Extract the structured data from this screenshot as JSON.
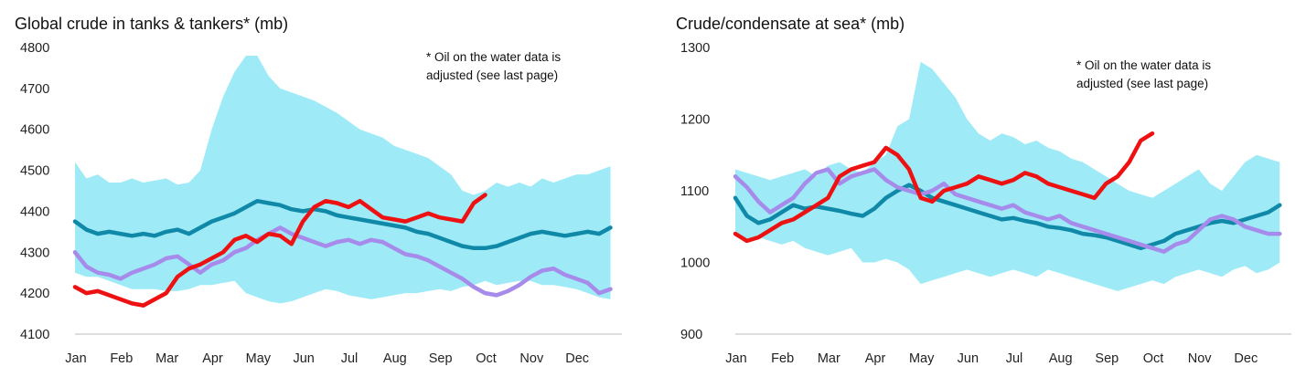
{
  "chart_data": [
    {
      "type": "line",
      "title": "Global crude in tanks & tankers* (mb)",
      "annotation": "* Oil on the water data is\nadjusted (see last page)",
      "xlabel": "",
      "ylabel": "",
      "ylim": [
        4100,
        4800
      ],
      "yticks": [
        4100,
        4200,
        4300,
        4400,
        4500,
        4600,
        4700,
        4800
      ],
      "categories": [
        "Jan",
        "Feb",
        "Mar",
        "Apr",
        "May",
        "Jun",
        "Jul",
        "Aug",
        "Sep",
        "Oct",
        "Nov",
        "Dec"
      ],
      "x": [
        0,
        0.25,
        0.5,
        0.75,
        1,
        1.25,
        1.5,
        1.75,
        2,
        2.25,
        2.5,
        2.75,
        3,
        3.25,
        3.5,
        3.75,
        4,
        4.25,
        4.5,
        4.75,
        5,
        5.25,
        5.5,
        5.75,
        6,
        6.25,
        6.5,
        6.75,
        7,
        7.25,
        7.5,
        7.75,
        8,
        8.25,
        8.5,
        8.75,
        9,
        9.25,
        9.5,
        9.75,
        10,
        10.25,
        10.5,
        10.75,
        11,
        11.25,
        11.5,
        11.75
      ],
      "band": {
        "name": "Range",
        "color": "#9EEBF7",
        "upper": [
          4520,
          4480,
          4490,
          4470,
          4470,
          4480,
          4470,
          4475,
          4480,
          4465,
          4470,
          4500,
          4600,
          4680,
          4740,
          4780,
          4780,
          4730,
          4700,
          4690,
          4680,
          4670,
          4655,
          4640,
          4620,
          4600,
          4590,
          4580,
          4560,
          4550,
          4540,
          4530,
          4510,
          4490,
          4450,
          4440,
          4450,
          4470,
          4460,
          4470,
          4460,
          4480,
          4470,
          4480,
          4490,
          4490,
          4500,
          4510
        ],
        "lower": [
          4250,
          4240,
          4240,
          4230,
          4220,
          4210,
          4210,
          4210,
          4205,
          4205,
          4210,
          4220,
          4220,
          4225,
          4230,
          4200,
          4190,
          4180,
          4175,
          4180,
          4190,
          4200,
          4210,
          4205,
          4195,
          4190,
          4185,
          4190,
          4195,
          4200,
          4200,
          4205,
          4210,
          4205,
          4215,
          4220,
          4230,
          4220,
          4225,
          4230,
          4230,
          4220,
          4220,
          4215,
          4210,
          4200,
          4190,
          4185
        ]
      },
      "series": [
        {
          "name": "Teal",
          "color": "#1089A8",
          "x": [
            0,
            0.25,
            0.5,
            0.75,
            1,
            1.25,
            1.5,
            1.75,
            2,
            2.25,
            2.5,
            2.75,
            3,
            3.25,
            3.5,
            3.75,
            4,
            4.25,
            4.5,
            4.75,
            5,
            5.25,
            5.5,
            5.75,
            6,
            6.25,
            6.5,
            6.75,
            7,
            7.25,
            7.5,
            7.75,
            8,
            8.25,
            8.5,
            8.75,
            9,
            9.25,
            9.5,
            9.75,
            10,
            10.25,
            10.5,
            10.75,
            11,
            11.25,
            11.5,
            11.75
          ],
          "values": [
            4375,
            4355,
            4345,
            4350,
            4345,
            4340,
            4345,
            4340,
            4350,
            4355,
            4345,
            4360,
            4375,
            4385,
            4395,
            4410,
            4425,
            4420,
            4415,
            4405,
            4400,
            4405,
            4400,
            4390,
            4385,
            4380,
            4375,
            4370,
            4365,
            4360,
            4350,
            4345,
            4335,
            4325,
            4315,
            4310,
            4310,
            4315,
            4325,
            4335,
            4345,
            4350,
            4345,
            4340,
            4345,
            4350,
            4345,
            4360
          ]
        },
        {
          "name": "Purple",
          "color": "#A78BEB",
          "x": [
            0,
            0.25,
            0.5,
            0.75,
            1,
            1.25,
            1.5,
            1.75,
            2,
            2.25,
            2.5,
            2.75,
            3,
            3.25,
            3.5,
            3.75,
            4,
            4.25,
            4.5,
            4.75,
            5,
            5.25,
            5.5,
            5.75,
            6,
            6.25,
            6.5,
            6.75,
            7,
            7.25,
            7.5,
            7.75,
            8,
            8.25,
            8.5,
            8.75,
            9,
            9.25,
            9.5,
            9.75,
            10,
            10.25,
            10.5,
            10.75,
            11,
            11.25,
            11.5,
            11.75
          ],
          "values": [
            4300,
            4265,
            4250,
            4245,
            4235,
            4250,
            4260,
            4270,
            4285,
            4290,
            4270,
            4250,
            4270,
            4280,
            4300,
            4310,
            4330,
            4345,
            4360,
            4345,
            4335,
            4325,
            4315,
            4325,
            4330,
            4320,
            4330,
            4325,
            4310,
            4295,
            4290,
            4280,
            4265,
            4250,
            4235,
            4215,
            4200,
            4195,
            4205,
            4220,
            4240,
            4255,
            4260,
            4245,
            4235,
            4225,
            4200,
            4210
          ]
        },
        {
          "name": "Red",
          "color": "#EE1111",
          "x": [
            0,
            0.25,
            0.5,
            0.75,
            1,
            1.25,
            1.5,
            1.75,
            2,
            2.25,
            2.5,
            2.75,
            3,
            3.25,
            3.5,
            3.75,
            4,
            4.25,
            4.5,
            4.75,
            5,
            5.25,
            5.5,
            5.75,
            6,
            6.25,
            6.5,
            6.75,
            7,
            7.25,
            7.5,
            7.75,
            8,
            8.25,
            8.5,
            8.75,
            9
          ],
          "values": [
            4215,
            4200,
            4205,
            4195,
            4185,
            4175,
            4170,
            4185,
            4200,
            4240,
            4260,
            4270,
            4285,
            4300,
            4330,
            4340,
            4325,
            4345,
            4340,
            4320,
            4375,
            4410,
            4425,
            4420,
            4410,
            4425,
            4405,
            4385,
            4380,
            4375,
            4385,
            4395,
            4385,
            4380,
            4375,
            4420,
            4440
          ]
        }
      ]
    },
    {
      "type": "line",
      "title": "Crude/condensate at sea* (mb)",
      "annotation": "* Oil on the water data is\nadjusted (see last page)",
      "xlabel": "",
      "ylabel": "",
      "ylim": [
        900,
        1300
      ],
      "yticks": [
        900,
        1000,
        1100,
        1200,
        1300
      ],
      "categories": [
        "Jan",
        "Feb",
        "Mar",
        "Apr",
        "May",
        "Jun",
        "Jul",
        "Aug",
        "Sep",
        "Oct",
        "Nov",
        "Dec"
      ],
      "x": [
        0,
        0.25,
        0.5,
        0.75,
        1,
        1.25,
        1.5,
        1.75,
        2,
        2.25,
        2.5,
        2.75,
        3,
        3.25,
        3.5,
        3.75,
        4,
        4.25,
        4.5,
        4.75,
        5,
        5.25,
        5.5,
        5.75,
        6,
        6.25,
        6.5,
        6.75,
        7,
        7.25,
        7.5,
        7.75,
        8,
        8.25,
        8.5,
        8.75,
        9,
        9.25,
        9.5,
        9.75,
        10,
        10.25,
        10.5,
        10.75,
        11,
        11.25,
        11.5,
        11.75
      ],
      "band": {
        "name": "Range",
        "color": "#9EEBF7",
        "upper": [
          1130,
          1125,
          1120,
          1115,
          1120,
          1125,
          1130,
          1120,
          1135,
          1140,
          1130,
          1125,
          1140,
          1150,
          1190,
          1200,
          1280,
          1270,
          1250,
          1230,
          1200,
          1180,
          1170,
          1180,
          1175,
          1165,
          1170,
          1160,
          1155,
          1145,
          1140,
          1130,
          1120,
          1110,
          1100,
          1095,
          1090,
          1100,
          1110,
          1120,
          1130,
          1110,
          1100,
          1120,
          1140,
          1150,
          1145,
          1140
        ],
        "lower": [
          1040,
          1030,
          1035,
          1030,
          1025,
          1030,
          1020,
          1015,
          1010,
          1015,
          1020,
          1000,
          1000,
          1005,
          1000,
          990,
          970,
          975,
          980,
          985,
          990,
          985,
          980,
          985,
          990,
          985,
          980,
          990,
          985,
          980,
          975,
          970,
          965,
          960,
          965,
          970,
          975,
          970,
          980,
          985,
          990,
          985,
          980,
          990,
          995,
          985,
          990,
          1000
        ]
      },
      "series": [
        {
          "name": "Teal",
          "color": "#1089A8",
          "x": [
            0,
            0.25,
            0.5,
            0.75,
            1,
            1.25,
            1.5,
            1.75,
            2,
            2.25,
            2.5,
            2.75,
            3,
            3.25,
            3.5,
            3.75,
            4,
            4.25,
            4.5,
            4.75,
            5,
            5.25,
            5.5,
            5.75,
            6,
            6.25,
            6.5,
            6.75,
            7,
            7.25,
            7.5,
            7.75,
            8,
            8.25,
            8.5,
            8.75,
            9,
            9.25,
            9.5,
            9.75,
            10,
            10.25,
            10.5,
            10.75,
            11,
            11.25,
            11.5,
            11.75
          ],
          "values": [
            1090,
            1065,
            1055,
            1060,
            1070,
            1080,
            1075,
            1078,
            1075,
            1072,
            1068,
            1065,
            1075,
            1090,
            1100,
            1108,
            1100,
            1090,
            1085,
            1080,
            1075,
            1070,
            1065,
            1060,
            1062,
            1058,
            1055,
            1050,
            1048,
            1045,
            1040,
            1038,
            1035,
            1030,
            1025,
            1020,
            1025,
            1030,
            1040,
            1045,
            1050,
            1055,
            1058,
            1055,
            1060,
            1065,
            1070,
            1080
          ]
        },
        {
          "name": "Purple",
          "color": "#A78BEB",
          "x": [
            0,
            0.25,
            0.5,
            0.75,
            1,
            1.25,
            1.5,
            1.75,
            2,
            2.25,
            2.5,
            2.75,
            3,
            3.25,
            3.5,
            3.75,
            4,
            4.25,
            4.5,
            4.75,
            5,
            5.25,
            5.5,
            5.75,
            6,
            6.25,
            6.5,
            6.75,
            7,
            7.25,
            7.5,
            7.75,
            8,
            8.25,
            8.5,
            8.75,
            9,
            9.25,
            9.5,
            9.75,
            10,
            10.25,
            10.5,
            10.75,
            11,
            11.25,
            11.5,
            11.75
          ],
          "values": [
            1120,
            1105,
            1085,
            1070,
            1080,
            1090,
            1110,
            1125,
            1130,
            1110,
            1120,
            1125,
            1130,
            1115,
            1105,
            1100,
            1095,
            1100,
            1110,
            1095,
            1090,
            1085,
            1080,
            1075,
            1080,
            1070,
            1065,
            1060,
            1065,
            1055,
            1050,
            1045,
            1040,
            1035,
            1030,
            1025,
            1020,
            1015,
            1025,
            1030,
            1045,
            1060,
            1065,
            1060,
            1050,
            1045,
            1040,
            1040
          ]
        },
        {
          "name": "Red",
          "color": "#EE1111",
          "x": [
            0,
            0.25,
            0.5,
            0.75,
            1,
            1.25,
            1.5,
            1.75,
            2,
            2.25,
            2.5,
            2.75,
            3,
            3.25,
            3.5,
            3.75,
            4,
            4.25,
            4.5,
            4.75,
            5,
            5.25,
            5.5,
            5.75,
            6,
            6.25,
            6.5,
            6.75,
            7,
            7.25,
            7.5,
            7.75,
            8,
            8.25,
            8.5,
            8.75,
            9
          ],
          "values": [
            1040,
            1030,
            1035,
            1045,
            1055,
            1060,
            1070,
            1080,
            1090,
            1120,
            1130,
            1135,
            1140,
            1160,
            1150,
            1130,
            1090,
            1085,
            1100,
            1105,
            1110,
            1120,
            1115,
            1110,
            1115,
            1125,
            1120,
            1110,
            1105,
            1100,
            1095,
            1090,
            1110,
            1120,
            1140,
            1170,
            1180
          ]
        }
      ]
    }
  ]
}
